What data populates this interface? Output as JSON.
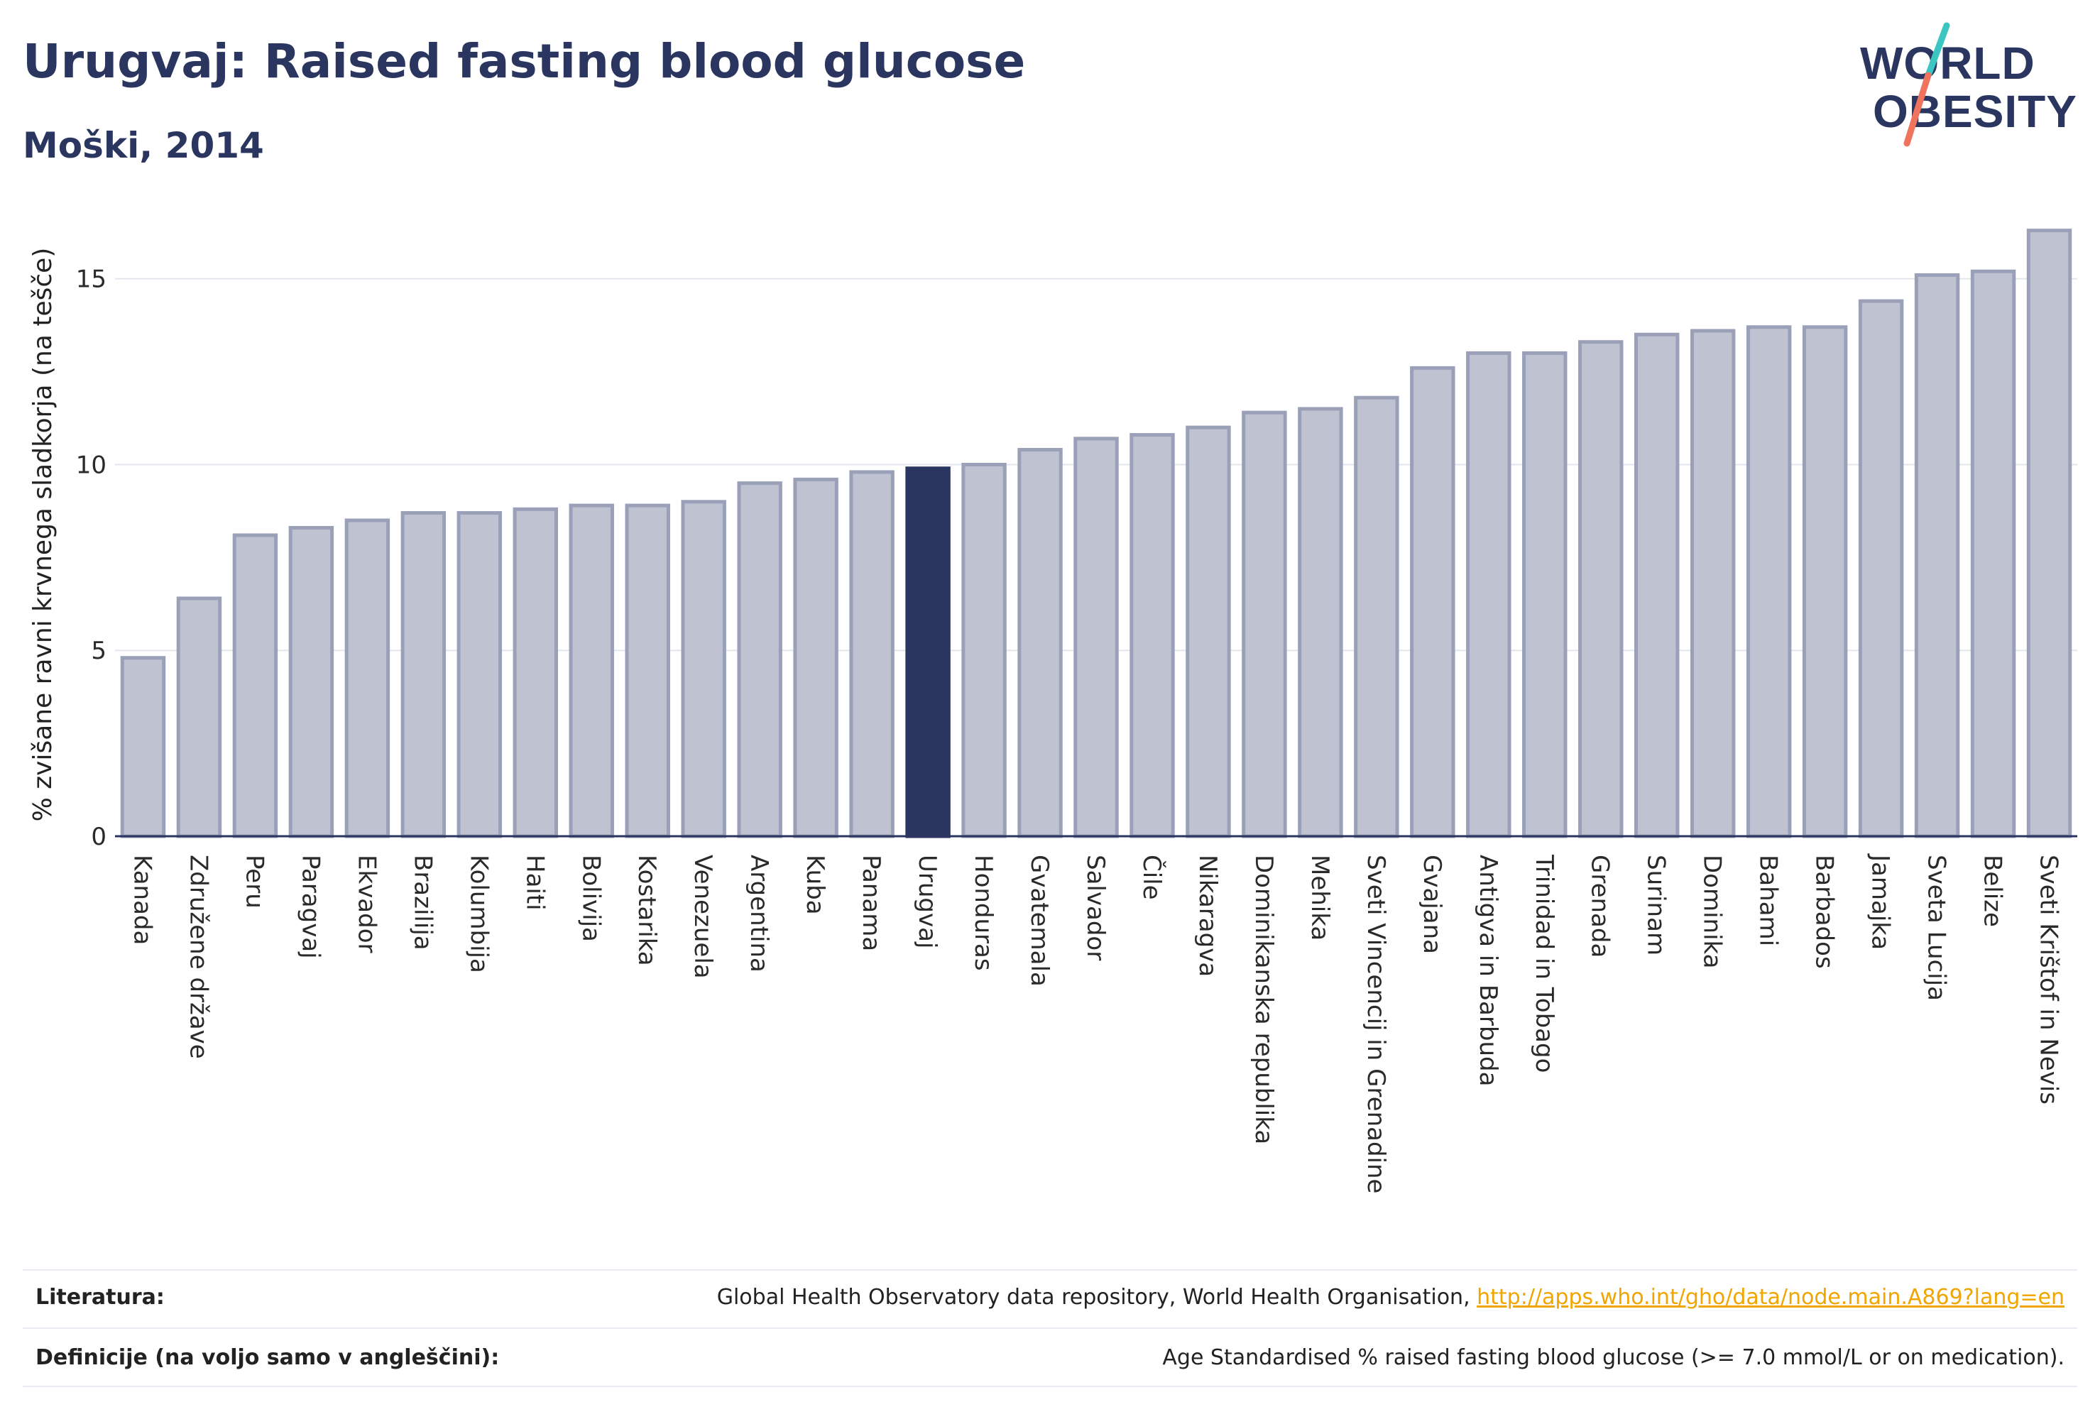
{
  "header": {
    "title": "Urugvaj: Raised fasting blood glucose",
    "subtitle": "Moški, 2014"
  },
  "logo": {
    "line1": "WORLD",
    "line2": "OBESITY",
    "slash_colors": [
      "#3cc6c2",
      "#f0735e"
    ]
  },
  "colors": {
    "bar_fill": "#bfc2d0",
    "bar_stroke": "#9aa0b8",
    "highlight_fill": "#2a3560",
    "axis": "#2a3560",
    "grid": "#e3e5ec"
  },
  "chart_data": {
    "type": "bar",
    "ylabel": "% zvišane ravni krvnega sladkorja (na tešče)",
    "xlabel": "",
    "ylim": [
      0,
      17
    ],
    "yticks": [
      0,
      5,
      10,
      15
    ],
    "grid": true,
    "highlight": "Urugvaj",
    "categories": [
      "Kanada",
      "Združene države",
      "Peru",
      "Paragvaj",
      "Ekvador",
      "Brazilija",
      "Kolumbija",
      "Haiti",
      "Bolivija",
      "Kostarika",
      "Venezuela",
      "Argentina",
      "Kuba",
      "Panama",
      "Urugvaj",
      "Honduras",
      "Gvatemala",
      "Salvador",
      "Čile",
      "Nikaragva",
      "Dominikanska republika",
      "Mehika",
      "Sveti Vincencij in Grenadine",
      "Gvajana",
      "Antigva in Barbuda",
      "Trinidad in Tobago",
      "Grenada",
      "Surinam",
      "Dominika",
      "Bahami",
      "Barbados",
      "Jamajka",
      "Sveta Lucija",
      "Belize",
      "Sveti Krištof in Nevis"
    ],
    "values": [
      4.8,
      6.4,
      8.1,
      8.3,
      8.5,
      8.7,
      8.7,
      8.8,
      8.9,
      8.9,
      9.0,
      9.5,
      9.6,
      9.8,
      9.9,
      10.0,
      10.4,
      10.7,
      10.8,
      11.0,
      11.4,
      11.5,
      11.8,
      12.6,
      13.0,
      13.0,
      13.3,
      13.5,
      13.6,
      13.7,
      13.7,
      14.4,
      15.1,
      15.2,
      16.3
    ]
  },
  "footer": {
    "literature_label": "Literatura:",
    "literature_text": "Global Health Observatory data repository, World Health Organisation, ",
    "literature_link": "http://apps.who.int/gho/data/node.main.A869?lang=en",
    "definitions_label": "Definicije (na voljo samo v angleščini):",
    "definitions_text": "Age Standardised % raised fasting blood glucose (>= 7.0 mmol/L or on medication)."
  }
}
